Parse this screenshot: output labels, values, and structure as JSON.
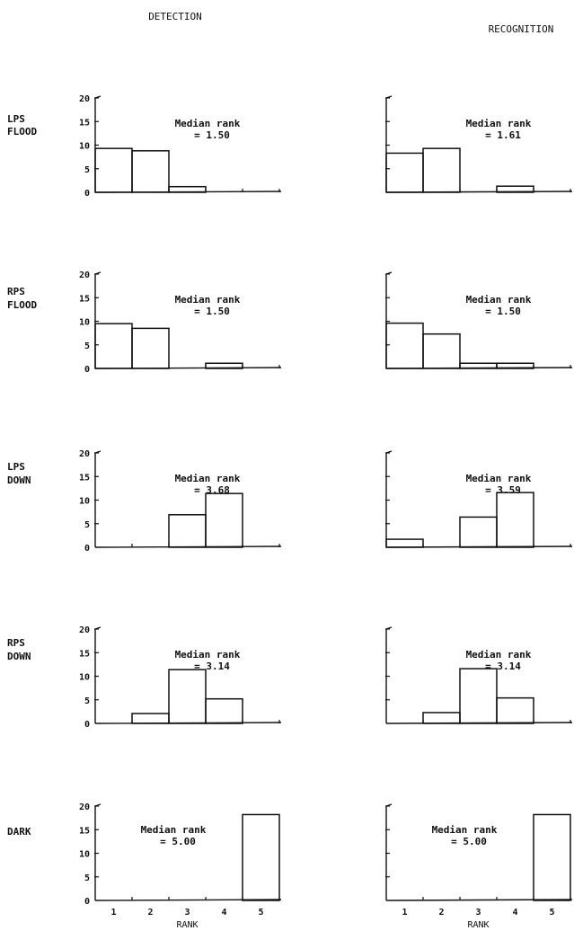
{
  "column_titles": [
    "DETECTION",
    "RECOGNITION"
  ],
  "row_labels": [
    [
      "LPS",
      "FLOOD"
    ],
    [
      "RPS",
      "FLOOD"
    ],
    [
      "LPS",
      "DOWN"
    ],
    [
      "RPS",
      "DOWN"
    ],
    [
      "DARK",
      ""
    ]
  ],
  "chart_data": {
    "type": "bar",
    "layout": "5 rows x 2 columns of histograms",
    "categories": [
      "1",
      "2",
      "3",
      "4",
      "5"
    ],
    "xlabel": "RANK",
    "ylim": [
      0,
      20
    ],
    "yticks": [
      "0",
      "5",
      "10",
      "15",
      "20"
    ],
    "annotation_label": "Median rank",
    "panels": [
      {
        "row": "LPS FLOOD",
        "column": "DETECTION",
        "median_rank": "= 1.50",
        "values": [
          9.3,
          8.8,
          1.2,
          0,
          0
        ]
      },
      {
        "row": "LPS FLOOD",
        "column": "RECOGNITION",
        "median_rank": "= 1.61",
        "values": [
          8.3,
          9.3,
          0,
          1.3,
          0
        ]
      },
      {
        "row": "RPS FLOOD",
        "column": "DETECTION",
        "median_rank": "= 1.50",
        "values": [
          9.5,
          8.5,
          0,
          1.1,
          0
        ]
      },
      {
        "row": "RPS FLOOD",
        "column": "RECOGNITION",
        "median_rank": "= 1.50",
        "values": [
          9.6,
          7.3,
          1.1,
          1.1,
          0
        ]
      },
      {
        "row": "LPS DOWN",
        "column": "DETECTION",
        "median_rank": "= 3.68",
        "values": [
          0,
          0,
          6.9,
          11.4,
          0
        ]
      },
      {
        "row": "LPS DOWN",
        "column": "RECOGNITION",
        "median_rank": "= 3.59",
        "values": [
          1.7,
          0,
          6.4,
          11.6,
          0
        ]
      },
      {
        "row": "RPS DOWN",
        "column": "DETECTION",
        "median_rank": "= 3.14",
        "values": [
          0,
          2.1,
          11.4,
          5.2,
          0
        ]
      },
      {
        "row": "RPS DOWN",
        "column": "RECOGNITION",
        "median_rank": "= 3.14",
        "values": [
          0,
          2.3,
          11.6,
          5.4,
          0
        ]
      },
      {
        "row": "DARK",
        "column": "DETECTION",
        "median_rank": "= 5.00",
        "values": [
          0,
          0,
          0,
          0,
          18.2
        ]
      },
      {
        "row": "DARK",
        "column": "RECOGNITION",
        "median_rank": "= 5.00",
        "values": [
          0,
          0,
          0,
          0,
          18.2
        ]
      }
    ]
  }
}
